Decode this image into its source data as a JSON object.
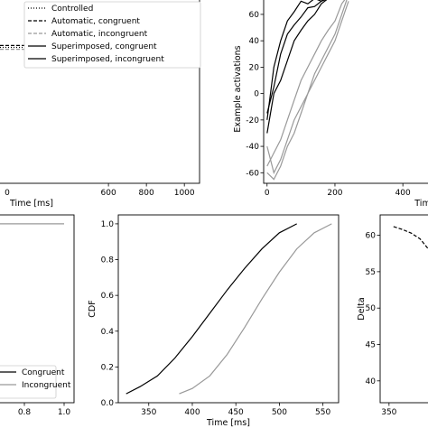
{
  "chart_data": [
    {
      "type": "line",
      "panel": "top-left",
      "xlabel": "Time [ms]",
      "ylabel": "",
      "xticks": [
        "0",
        "600",
        "800",
        "1000"
      ],
      "legend": {
        "placement": "top-right",
        "entries": [
          "Controlled",
          "Automatic, congruent",
          "Automatic, incongruent",
          "Superimposed, congruent",
          "Superimposed, incongruent"
        ]
      },
      "series": [
        {
          "name": "Controlled",
          "style": "dotted",
          "color": "#000000",
          "x": [
            0,
            1000
          ],
          "y": [
            0.72,
            0.72
          ]
        },
        {
          "name": "Automatic, congruent",
          "style": "dashed",
          "color": "#000000",
          "x": [
            0,
            1000
          ],
          "y": [
            0.73,
            0.73
          ]
        },
        {
          "name": "Automatic, incongruent",
          "style": "dashed",
          "color": "#999999",
          "x": [
            0,
            1000
          ],
          "y": [
            0.71,
            0.71
          ]
        }
      ],
      "ylim": [
        0,
        1
      ],
      "xlim": [
        0,
        1080
      ]
    },
    {
      "type": "line",
      "panel": "top-right",
      "xlabel": "Tim",
      "ylabel": "Example activations",
      "xticks": [
        "0",
        "200",
        "400"
      ],
      "yticks": [
        "-60",
        "-40",
        "-20",
        "0",
        "20",
        "40",
        "60"
      ],
      "xlim": [
        -10,
        490
      ],
      "ylim": [
        -68,
        75
      ],
      "series": [
        {
          "style": "solid",
          "color": "#000000",
          "x": [
            0,
            20,
            40,
            60,
            80,
            100,
            120,
            140,
            160,
            180,
            200
          ],
          "y": [
            -20,
            20,
            40,
            55,
            62,
            70,
            68,
            72,
            70,
            75,
            75
          ]
        },
        {
          "style": "solid",
          "color": "#000000",
          "x": [
            0,
            20,
            40,
            60,
            80,
            100,
            120,
            140,
            160,
            180,
            200
          ],
          "y": [
            -15,
            5,
            30,
            45,
            52,
            58,
            65,
            66,
            70,
            72,
            75
          ]
        },
        {
          "style": "solid",
          "color": "#000000",
          "x": [
            0,
            20,
            40,
            60,
            80,
            100,
            120,
            140,
            160,
            180,
            200
          ],
          "y": [
            -30,
            0,
            10,
            25,
            40,
            48,
            55,
            60,
            68,
            72,
            75
          ]
        },
        {
          "style": "solid",
          "color": "#999999",
          "x": [
            0,
            20,
            40,
            60,
            80,
            100,
            120,
            140,
            160,
            180,
            200,
            220,
            240
          ],
          "y": [
            -55,
            -45,
            -35,
            -20,
            -5,
            10,
            20,
            30,
            40,
            48,
            55,
            68,
            75
          ]
        },
        {
          "style": "solid",
          "color": "#999999",
          "x": [
            0,
            20,
            40,
            60,
            80,
            100,
            120,
            140,
            160,
            180,
            200,
            220,
            240
          ],
          "y": [
            -40,
            -60,
            -50,
            -35,
            -20,
            -10,
            0,
            15,
            25,
            35,
            45,
            60,
            75
          ]
        },
        {
          "style": "solid",
          "color": "#999999",
          "x": [
            0,
            20,
            40,
            60,
            80,
            100,
            120,
            140,
            160,
            180,
            200,
            220,
            240
          ],
          "y": [
            -60,
            -65,
            -55,
            -40,
            -30,
            -15,
            0,
            10,
            20,
            30,
            40,
            55,
            70
          ]
        }
      ]
    },
    {
      "type": "line",
      "panel": "bottom-left",
      "xlabel": "",
      "ylabel": "",
      "xticks": [
        "0.8",
        "1.0"
      ],
      "xlim": [
        0.65,
        1.05
      ],
      "ylim": [
        0,
        1.05
      ],
      "legend": {
        "placement": "bottom-right",
        "entries": [
          "Congruent",
          "Incongruent"
        ]
      },
      "series": [
        {
          "name": "Congruent",
          "style": "solid",
          "color": "#000000",
          "x": [],
          "y": []
        },
        {
          "name": "Incongruent",
          "style": "solid",
          "color": "#999999",
          "x": [
            0.6,
            1.0
          ],
          "y": [
            1.0,
            1.0
          ]
        }
      ]
    },
    {
      "type": "line",
      "panel": "bottom-middle",
      "xlabel": "Time [ms]",
      "ylabel": "CDF",
      "xticks": [
        "350",
        "400",
        "450",
        "500",
        "550"
      ],
      "yticks": [
        "0.0",
        "0.2",
        "0.4",
        "0.6",
        "0.8",
        "1.0"
      ],
      "xlim": [
        315,
        568
      ],
      "ylim": [
        0.0,
        1.05
      ],
      "series": [
        {
          "style": "solid",
          "color": "#000000",
          "x": [
            324,
            340,
            360,
            380,
            400,
            420,
            440,
            460,
            480,
            500,
            520
          ],
          "y": [
            0.05,
            0.09,
            0.15,
            0.25,
            0.37,
            0.5,
            0.63,
            0.75,
            0.86,
            0.95,
            1.0
          ]
        },
        {
          "style": "solid",
          "color": "#999999",
          "x": [
            385,
            400,
            420,
            440,
            460,
            480,
            500,
            520,
            540,
            560
          ],
          "y": [
            0.05,
            0.08,
            0.15,
            0.27,
            0.42,
            0.58,
            0.73,
            0.86,
            0.95,
            1.0
          ]
        }
      ]
    },
    {
      "type": "line",
      "panel": "bottom-right",
      "xlabel": "",
      "ylabel": "Delta",
      "xticks": [
        "350"
      ],
      "yticks": [
        "40",
        "45",
        "50",
        "55",
        "60"
      ],
      "xlim": [
        340,
        400
      ],
      "ylim": [
        37,
        62.8
      ],
      "series": [
        {
          "style": "dashed",
          "color": "#000000",
          "x": [
            355,
            365,
            375,
            385,
            395
          ],
          "y": [
            61.2,
            60.8,
            60.3,
            59.5,
            58.0
          ]
        }
      ]
    }
  ]
}
